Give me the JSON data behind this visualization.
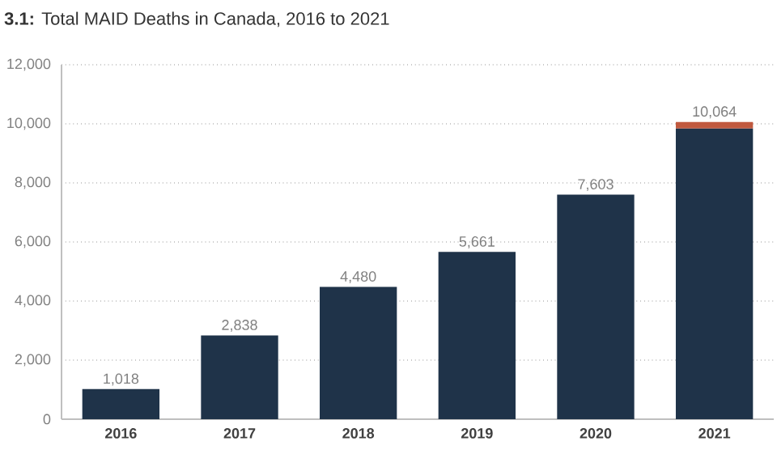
{
  "chart_data": {
    "type": "bar",
    "stacked": true,
    "title": "**3.1:** Total MAID Deaths in Canada, 2016 to 2021",
    "categories": [
      "2016",
      "2017",
      "2018",
      "2019",
      "2020",
      "2021"
    ],
    "series": [
      {
        "color": "#1f3349",
        "values": [
          1018,
          2838,
          4480,
          5661,
          7603,
          9845
        ]
      },
      {
        "color": "#c0593f",
        "values": [
          null,
          null,
          null,
          null,
          null,
          219
        ]
      }
    ],
    "totals": [
      "1,018",
      "2,838",
      "4,480",
      "5,661",
      "7,603",
      "10,064"
    ],
    "ylim": [
      0,
      12000
    ],
    "yticks": [
      0,
      {
        "value": 2000,
        "label": "2,000"
      },
      {
        "value": 4000,
        "label": "4,000"
      },
      {
        "value": 6000,
        "label": "6,000"
      },
      {
        "value": 8000,
        "label": "8,000"
      },
      {
        "value": 10000,
        "label": "10,000"
      },
      {
        "value": 12000,
        "label": "12,000"
      }
    ],
    "grid": "y"
  }
}
